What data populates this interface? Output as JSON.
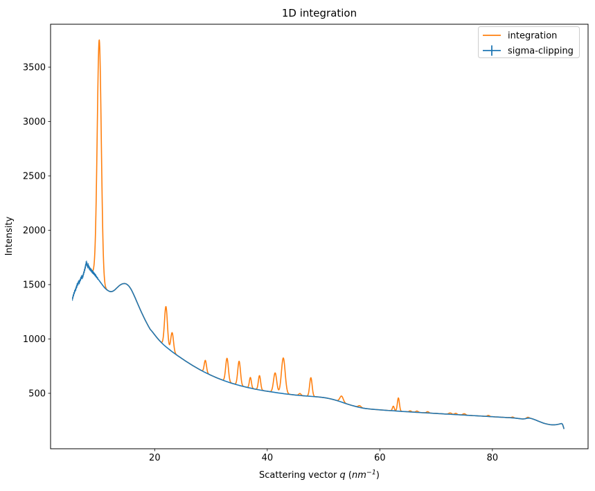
{
  "chart_data": {
    "type": "line",
    "title": "1D integration",
    "xlabel": "Scattering vector q (nm⁻¹)",
    "xlabel_parts": {
      "prefix": "Scattering vector ",
      "q": "q",
      "open": " (",
      "unit": "nm",
      "sup": "−1",
      "close": ")"
    },
    "ylabel": "Intensity",
    "xlim": [
      1.5,
      97
    ],
    "ylim": [
      -10,
      3895
    ],
    "xticks": [
      20,
      40,
      60,
      80
    ],
    "yticks": [
      500,
      1000,
      1500,
      2000,
      2500,
      3000,
      3500
    ],
    "grid": false,
    "legend": {
      "position": "upper right",
      "entries": [
        {
          "label": "integration",
          "color": "#ff7f0e",
          "marker": "line"
        },
        {
          "label": "sigma-clipping",
          "color": "#1f77b4",
          "marker": "errorbar"
        }
      ]
    },
    "series": [
      {
        "name": "sigma-clipping",
        "color": "#1f77b4",
        "description": "smooth sigma-clipped baseline with small error bars; points are [q, intensity, optional yerr]",
        "points": [
          [
            5.4,
            1368,
            16
          ],
          [
            5.5,
            1392,
            16
          ],
          [
            5.62,
            1412,
            18
          ],
          [
            5.75,
            1432,
            18
          ],
          [
            5.88,
            1448,
            16
          ],
          [
            6.0,
            1462,
            18
          ],
          [
            6.1,
            1480,
            16
          ],
          [
            6.2,
            1492,
            20
          ],
          [
            6.3,
            1504,
            16
          ],
          [
            6.42,
            1514,
            18
          ],
          [
            6.52,
            1526,
            16
          ],
          [
            6.62,
            1522,
            18
          ],
          [
            6.72,
            1538,
            16
          ],
          [
            6.85,
            1552,
            18
          ],
          [
            6.95,
            1564,
            16
          ],
          [
            7.05,
            1572,
            18
          ],
          [
            7.15,
            1566,
            16
          ],
          [
            7.28,
            1584,
            18
          ],
          [
            7.38,
            1604,
            16
          ],
          [
            7.5,
            1626,
            18
          ],
          [
            7.6,
            1645,
            18
          ],
          [
            7.7,
            1668,
            20
          ],
          [
            7.8,
            1692,
            22
          ],
          [
            7.9,
            1700,
            20
          ],
          [
            8.0,
            1684,
            20
          ],
          [
            8.1,
            1668,
            18
          ],
          [
            8.2,
            1676,
            20
          ],
          [
            8.3,
            1660,
            18
          ],
          [
            8.42,
            1650,
            18
          ],
          [
            8.55,
            1641,
            16
          ],
          [
            8.68,
            1634,
            16
          ],
          [
            8.8,
            1626,
            16
          ],
          [
            8.92,
            1618,
            16
          ],
          [
            9.05,
            1611,
            16
          ],
          [
            9.18,
            1604,
            14
          ],
          [
            9.3,
            1596,
            14
          ],
          [
            9.42,
            1588,
            14
          ],
          [
            9.55,
            1580,
            14
          ],
          [
            9.7,
            1569,
            12
          ],
          [
            9.85,
            1558,
            12
          ],
          [
            10.0,
            1547
          ],
          [
            10.2,
            1533
          ],
          [
            10.4,
            1519
          ],
          [
            10.6,
            1505
          ],
          [
            10.8,
            1491
          ],
          [
            11.0,
            1478
          ],
          [
            11.2,
            1466
          ],
          [
            11.45,
            1454
          ],
          [
            11.7,
            1445
          ],
          [
            11.95,
            1438
          ],
          [
            12.2,
            1435
          ],
          [
            12.45,
            1437
          ],
          [
            12.7,
            1443
          ],
          [
            12.95,
            1453
          ],
          [
            13.2,
            1466
          ],
          [
            13.45,
            1478
          ],
          [
            13.7,
            1490
          ],
          [
            13.95,
            1499
          ],
          [
            14.2,
            1506
          ],
          [
            14.45,
            1509
          ],
          [
            14.7,
            1510
          ],
          [
            14.95,
            1506
          ],
          [
            15.2,
            1497
          ],
          [
            15.45,
            1484
          ],
          [
            15.7,
            1466
          ],
          [
            15.95,
            1443
          ],
          [
            16.2,
            1416
          ],
          [
            16.5,
            1382
          ],
          [
            16.8,
            1346
          ],
          [
            17.1,
            1310
          ],
          [
            17.4,
            1274
          ],
          [
            17.7,
            1240
          ],
          [
            18.0,
            1207
          ],
          [
            18.3,
            1175
          ],
          [
            18.6,
            1145
          ],
          [
            18.9,
            1116
          ],
          [
            19.2,
            1089
          ],
          [
            19.6,
            1065
          ],
          [
            20.0,
            1038
          ],
          [
            20.4,
            1012
          ],
          [
            20.8,
            988
          ],
          [
            21.2,
            966
          ],
          [
            21.6,
            946
          ],
          [
            22.0,
            928
          ],
          [
            22.4,
            911
          ],
          [
            22.8,
            895
          ],
          [
            23.2,
            879
          ],
          [
            23.6,
            864
          ],
          [
            24.0,
            849
          ],
          [
            24.4,
            835
          ],
          [
            24.8,
            821
          ],
          [
            25.2,
            807
          ],
          [
            25.6,
            793
          ],
          [
            26.0,
            780
          ],
          [
            26.4,
            767
          ],
          [
            26.8,
            754
          ],
          [
            27.2,
            742
          ],
          [
            27.6,
            730
          ],
          [
            28.0,
            718
          ],
          [
            28.4,
            707
          ],
          [
            28.8,
            696
          ],
          [
            29.2,
            686
          ],
          [
            29.6,
            676
          ],
          [
            30.0,
            666
          ],
          [
            30.4,
            657
          ],
          [
            30.8,
            648
          ],
          [
            31.2,
            639
          ],
          [
            31.6,
            631
          ],
          [
            32.0,
            623
          ],
          [
            32.4,
            615
          ],
          [
            32.8,
            608
          ],
          [
            33.2,
            601
          ],
          [
            33.6,
            594
          ],
          [
            34.0,
            588
          ],
          [
            34.4,
            582
          ],
          [
            34.8,
            576
          ],
          [
            35.2,
            570
          ],
          [
            35.6,
            565
          ],
          [
            36.0,
            560
          ],
          [
            36.4,
            555
          ],
          [
            36.8,
            550
          ],
          [
            37.2,
            546
          ],
          [
            37.6,
            541
          ],
          [
            38.0,
            537
          ],
          [
            38.4,
            533
          ],
          [
            38.8,
            529
          ],
          [
            39.2,
            526
          ],
          [
            39.6,
            522
          ],
          [
            40.0,
            519
          ],
          [
            40.5,
            515
          ],
          [
            41.0,
            511
          ],
          [
            41.5,
            507
          ],
          [
            42.0,
            503
          ],
          [
            42.5,
            500
          ],
          [
            43.0,
            496
          ],
          [
            43.5,
            493
          ],
          [
            44.0,
            490
          ],
          [
            44.5,
            487
          ],
          [
            45.0,
            484
          ],
          [
            45.5,
            482
          ],
          [
            46.0,
            479
          ],
          [
            46.5,
            477
          ],
          [
            47.0,
            475
          ],
          [
            47.5,
            473
          ],
          [
            48.0,
            471
          ],
          [
            48.5,
            469
          ],
          [
            49.0,
            467
          ],
          [
            49.5,
            464
          ],
          [
            50.0,
            461
          ],
          [
            50.5,
            457
          ],
          [
            51.0,
            452
          ],
          [
            51.5,
            446
          ],
          [
            52.0,
            439
          ],
          [
            52.5,
            431
          ],
          [
            53.0,
            423
          ],
          [
            53.5,
            414
          ],
          [
            54.0,
            405
          ],
          [
            54.5,
            397
          ],
          [
            55.0,
            389
          ],
          [
            55.5,
            382
          ],
          [
            56.0,
            375
          ],
          [
            56.5,
            369
          ],
          [
            57.0,
            364
          ],
          [
            57.5,
            360
          ],
          [
            58.0,
            357
          ],
          [
            58.5,
            354
          ],
          [
            59.0,
            352
          ],
          [
            59.5,
            350
          ],
          [
            60.0,
            348
          ],
          [
            60.5,
            346
          ],
          [
            61.0,
            344
          ],
          [
            61.5,
            342
          ],
          [
            62.0,
            341
          ],
          [
            62.5,
            339
          ],
          [
            63.0,
            337
          ],
          [
            63.5,
            335
          ],
          [
            64.0,
            333
          ],
          [
            64.5,
            332
          ],
          [
            65.0,
            330
          ],
          [
            65.5,
            328
          ],
          [
            66.0,
            327
          ],
          [
            66.5,
            325
          ],
          [
            67.0,
            324
          ],
          [
            67.5,
            322
          ],
          [
            68.0,
            321
          ],
          [
            68.5,
            319
          ],
          [
            69.0,
            318
          ],
          [
            69.5,
            316
          ],
          [
            70.0,
            315
          ],
          [
            70.5,
            313
          ],
          [
            71.0,
            312
          ],
          [
            71.5,
            310
          ],
          [
            72.0,
            309
          ],
          [
            72.5,
            307
          ],
          [
            73.0,
            306
          ],
          [
            73.5,
            304
          ],
          [
            74.0,
            303
          ],
          [
            74.5,
            301
          ],
          [
            75.0,
            300
          ],
          [
            75.5,
            298
          ],
          [
            76.0,
            297
          ],
          [
            76.5,
            295
          ],
          [
            77.0,
            294
          ],
          [
            77.5,
            292
          ],
          [
            78.0,
            291
          ],
          [
            78.5,
            289
          ],
          [
            79.0,
            288
          ],
          [
            79.5,
            286
          ],
          [
            80.0,
            285
          ],
          [
            80.5,
            283
          ],
          [
            81.0,
            282
          ],
          [
            81.5,
            280
          ],
          [
            82.0,
            279
          ],
          [
            82.5,
            277
          ],
          [
            83.0,
            276
          ],
          [
            83.5,
            274
          ],
          [
            84.0,
            272
          ],
          [
            84.5,
            269
          ],
          [
            85.0,
            266
          ],
          [
            85.4,
            264
          ],
          [
            85.8,
            266
          ],
          [
            86.2,
            271
          ],
          [
            86.6,
            272
          ],
          [
            87.0,
            267
          ],
          [
            87.4,
            260
          ],
          [
            87.8,
            252
          ],
          [
            88.2,
            243
          ],
          [
            88.6,
            235
          ],
          [
            89.0,
            227
          ],
          [
            89.4,
            221
          ],
          [
            89.8,
            216
          ],
          [
            90.2,
            212
          ],
          [
            90.6,
            210
          ],
          [
            91.0,
            210
          ],
          [
            91.4,
            212
          ],
          [
            91.8,
            216
          ],
          [
            92.1,
            220
          ],
          [
            92.3,
            222
          ],
          [
            92.45,
            216
          ],
          [
            92.55,
            202
          ],
          [
            92.65,
            186
          ],
          [
            92.72,
            172
          ]
        ]
      },
      {
        "name": "integration",
        "color": "#ff7f0e",
        "description": "integration curve = sigma-clipping baseline plus Bragg peaks; peaks are [q_center, amplitude, sigma]",
        "baseline": "sigma-clipping",
        "peaks": [
          [
            10.15,
            2215,
            0.36
          ],
          [
            22.0,
            370,
            0.26
          ],
          [
            23.1,
            175,
            0.24
          ],
          [
            29.0,
            112,
            0.2
          ],
          [
            32.85,
            215,
            0.24
          ],
          [
            35.0,
            222,
            0.24
          ],
          [
            37.0,
            98,
            0.18
          ],
          [
            38.62,
            132,
            0.2
          ],
          [
            41.4,
            180,
            0.28
          ],
          [
            42.85,
            328,
            0.33
          ],
          [
            45.8,
            18,
            0.2
          ],
          [
            47.75,
            172,
            0.22
          ],
          [
            53.2,
            55,
            0.3
          ],
          [
            56.4,
            16,
            0.25
          ],
          [
            62.4,
            42,
            0.16
          ],
          [
            63.3,
            122,
            0.18
          ],
          [
            65.4,
            10,
            0.2
          ],
          [
            66.6,
            12,
            0.2
          ],
          [
            68.5,
            12,
            0.2
          ],
          [
            72.5,
            12,
            0.25
          ],
          [
            73.5,
            12,
            0.2
          ],
          [
            75.0,
            12,
            0.25
          ],
          [
            79.3,
            10,
            0.2
          ],
          [
            83.6,
            8,
            0.2
          ],
          [
            86.3,
            8,
            0.2
          ]
        ]
      }
    ],
    "colors": {
      "integration": "#ff7f0e",
      "sigma_clipping": "#1f77b4",
      "spine": "#000000",
      "legend_border": "#cccccc",
      "background": "#ffffff"
    }
  }
}
